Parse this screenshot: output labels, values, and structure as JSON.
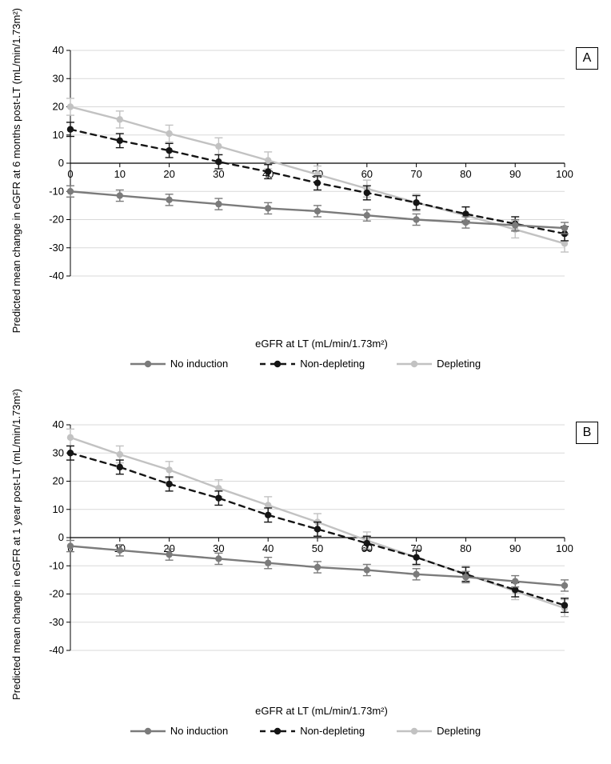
{
  "colors": {
    "no_induction": "#7b7b7b",
    "non_depleting": "#151515",
    "depleting": "#c2c2c2",
    "axis": "#000000",
    "grid": "#d9d9d9",
    "bg": "#ffffff"
  },
  "line_width": 2.4,
  "marker_radius": 4.2,
  "errbar_cap": 5,
  "font_size_axis": 13,
  "panelA": {
    "letter": "A",
    "ylabel": "Predicted mean change in eGFR at 6 months\npost-LT (mL/min/1.73m²)",
    "xlabel": "eGFR at LT (mL/min/1.73m²)",
    "xlim": [
      0,
      100
    ],
    "ylim": [
      -40,
      40
    ],
    "xticks": [
      0,
      10,
      20,
      30,
      40,
      50,
      60,
      70,
      80,
      90,
      100
    ],
    "yticks": [
      -40,
      -30,
      -20,
      -10,
      0,
      10,
      20,
      30,
      40
    ],
    "x": [
      0,
      10,
      20,
      30,
      40,
      50,
      60,
      70,
      80,
      90,
      100
    ],
    "series": {
      "no_induction": {
        "y": [
          -10,
          -11.5,
          -13,
          -14.5,
          -16,
          -17,
          -18.5,
          -20,
          -21,
          -22,
          -23
        ],
        "err": [
          2,
          2,
          2,
          2,
          2,
          2,
          2,
          2,
          2,
          2,
          2
        ],
        "dash": null
      },
      "non_depleting": {
        "y": [
          12,
          8,
          4.5,
          0.5,
          -3,
          -7,
          -10.5,
          -14,
          -18,
          -21.5,
          -25
        ],
        "err": [
          2.5,
          2.5,
          2.5,
          2.5,
          2.5,
          2.5,
          2.5,
          2.5,
          2.5,
          2.5,
          2.5
        ],
        "dash": "7,6"
      },
      "depleting": {
        "y": [
          20,
          15.5,
          10.5,
          6,
          1,
          -4,
          -9,
          -14,
          -18.5,
          -23.5,
          -28.5
        ],
        "err": [
          3,
          3,
          3,
          3,
          3,
          3,
          3,
          3,
          3,
          3,
          3
        ],
        "dash": null
      }
    }
  },
  "panelB": {
    "letter": "B",
    "ylabel": "Predicted mean change in eGFR at 1 year\npost-LT (mL/min/1.73m²)",
    "xlabel": "eGFR at LT (mL/min/1.73m²)",
    "xlim": [
      0,
      100
    ],
    "ylim": [
      -40,
      40
    ],
    "xticks": [
      0,
      10,
      20,
      30,
      40,
      50,
      60,
      70,
      80,
      90,
      100
    ],
    "yticks": [
      -40,
      -30,
      -20,
      -10,
      0,
      10,
      20,
      30,
      40
    ],
    "x": [
      0,
      10,
      20,
      30,
      40,
      50,
      60,
      70,
      80,
      90,
      100
    ],
    "series": {
      "no_induction": {
        "y": [
          -3,
          -4.5,
          -6,
          -7.5,
          -9,
          -10.5,
          -11.5,
          -13,
          -14,
          -15.5,
          -17
        ],
        "err": [
          2,
          2,
          2,
          2,
          2,
          2,
          2,
          2,
          2,
          2,
          2
        ],
        "dash": null
      },
      "non_depleting": {
        "y": [
          30,
          25,
          19,
          14,
          8,
          3,
          -2,
          -7,
          -13,
          -18.5,
          -24
        ],
        "err": [
          2.5,
          2.5,
          2.5,
          2.5,
          2.5,
          2.5,
          2.5,
          2.5,
          2.5,
          2.5,
          2.5
        ],
        "dash": "7,6"
      },
      "depleting": {
        "y": [
          35.5,
          29.5,
          24,
          17.5,
          11.5,
          5.5,
          -1,
          -7,
          -13,
          -19,
          -25
        ],
        "err": [
          3,
          3,
          3,
          3,
          3,
          3,
          3,
          3,
          3,
          3,
          3
        ],
        "dash": null
      }
    }
  },
  "legend": {
    "items": [
      {
        "key": "no_induction",
        "label": "No induction",
        "dash": null
      },
      {
        "key": "non_depleting",
        "label": "Non-depleting",
        "dash": "7,6"
      },
      {
        "key": "depleting",
        "label": "Depleting",
        "dash": null
      }
    ]
  }
}
